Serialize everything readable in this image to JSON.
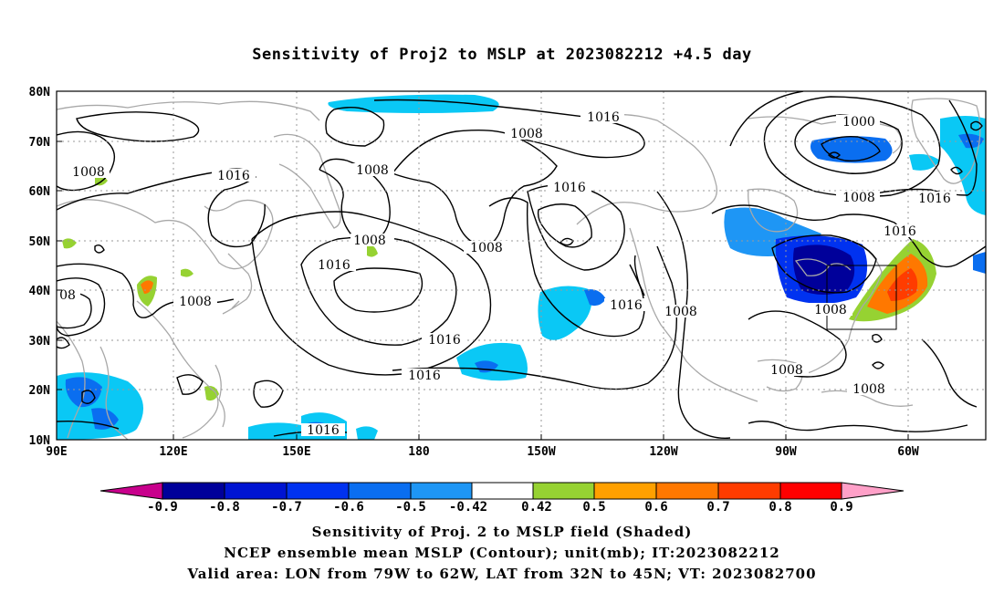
{
  "title": "Sensitivity of Proj2 to MSLP at 2023082212 +4.5 day",
  "map": {
    "lat_labels": [
      "80N",
      "70N",
      "60N",
      "50N",
      "40N",
      "30N",
      "20N",
      "10N"
    ],
    "lon_labels": [
      "90E",
      "120E",
      "150E",
      "180",
      "150W",
      "120W",
      "90W",
      "60W"
    ],
    "contour_labels": [
      {
        "text": "08"
      },
      {
        "text": "1008"
      },
      {
        "text": "1016"
      },
      {
        "text": "1008"
      },
      {
        "text": "1016"
      },
      {
        "text": "1008"
      },
      {
        "text": "1016"
      },
      {
        "text": "1016"
      },
      {
        "text": "1008"
      },
      {
        "text": "1016"
      },
      {
        "text": "1008"
      },
      {
        "text": "1008"
      },
      {
        "text": "1016"
      },
      {
        "text": "1016"
      },
      {
        "text": "1016"
      },
      {
        "text": "1000"
      },
      {
        "text": "1008"
      },
      {
        "text": "1016"
      },
      {
        "text": "1016"
      },
      {
        "text": "1008"
      },
      {
        "text": "1008"
      },
      {
        "text": "1008"
      },
      {
        "text": "1008"
      }
    ],
    "valid_area": {
      "lon": [
        "79W",
        "62W"
      ],
      "lat": [
        "32N",
        "45N"
      ]
    }
  },
  "colorbar": {
    "labels": [
      "-0.9",
      "-0.8",
      "-0.7",
      "-0.6",
      "-0.5",
      "-0.42",
      "0.42",
      "0.5",
      "0.6",
      "0.7",
      "0.8",
      "0.9"
    ],
    "colors": [
      "#c8008c",
      "#00009a",
      "#0014d2",
      "#0032f0",
      "#0a6ef0",
      "#1e96f5",
      "#0ac8f5",
      "#ffffff",
      "#96d232",
      "#ffa000",
      "#ff7800",
      "#ff3c00",
      "#ff0000",
      "#ffa0c8"
    ]
  },
  "footer": {
    "line1": "Sensitivity of Proj. 2 to MSLP field (Shaded)",
    "line2": "NCEP ensemble mean MSLP (Contour); unit(mb); IT:2023082212",
    "line3": "Valid area: LON from 79W to 62W, LAT from 32N to 45N; VT: 2023082700"
  }
}
